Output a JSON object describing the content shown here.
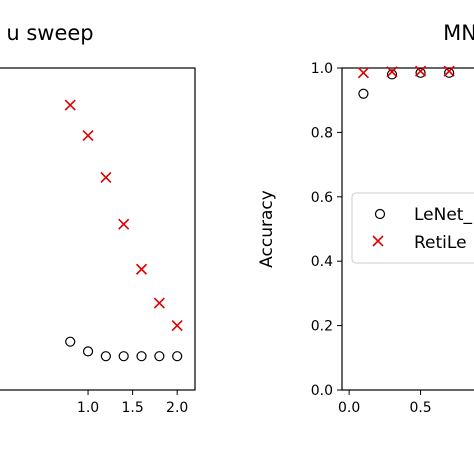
{
  "chart_data": [
    {
      "type": "scatter",
      "title": "u sweep",
      "xlabel": "",
      "ylabel": "",
      "xticks": [
        "1.0",
        "1.5",
        "2.0"
      ],
      "xtick_values": [
        1.0,
        1.5,
        2.0
      ],
      "xlim": [
        -0.1,
        2.2
      ],
      "ylim": [
        0.0,
        1.0
      ],
      "series": [
        {
          "marker": "circle-open",
          "color": "#000000",
          "x": [
            0.8,
            1.0,
            1.2,
            1.4,
            1.6,
            1.8,
            2.0
          ],
          "y": [
            0.15,
            0.12,
            0.105,
            0.105,
            0.105,
            0.105,
            0.105
          ]
        },
        {
          "marker": "x",
          "color": "#dd0000",
          "x": [
            0.8,
            1.0,
            1.2,
            1.4,
            1.6,
            1.8,
            2.0
          ],
          "y": [
            0.885,
            0.79,
            0.66,
            0.515,
            0.375,
            0.27,
            0.2
          ]
        }
      ]
    },
    {
      "type": "scatter",
      "title": "MN",
      "xlabel": "",
      "ylabel": "Accuracy",
      "yticks": [
        "0.0",
        "0.2",
        "0.4",
        "0.6",
        "0.8",
        "1.0"
      ],
      "ytick_values": [
        0.0,
        0.2,
        0.4,
        0.6,
        0.8,
        1.0
      ],
      "xticks": [
        "0.0",
        "0.5"
      ],
      "xtick_values": [
        0.0,
        0.5
      ],
      "xlim": [
        -0.05,
        1.0
      ],
      "ylim": [
        0.0,
        1.0
      ],
      "legend": {
        "placement": "center-left",
        "entries": [
          "LeNet_",
          "RetiLe"
        ]
      },
      "series": [
        {
          "name": "LeNet_",
          "marker": "circle-open",
          "color": "#000000",
          "x": [
            0.1,
            0.3,
            0.5,
            0.7
          ],
          "y": [
            0.92,
            0.98,
            0.985,
            0.985
          ]
        },
        {
          "name": "RetiLe",
          "marker": "x",
          "color": "#dd0000",
          "x": [
            0.1,
            0.3,
            0.5,
            0.7
          ],
          "y": [
            0.985,
            0.988,
            0.99,
            0.99
          ]
        }
      ]
    }
  ]
}
